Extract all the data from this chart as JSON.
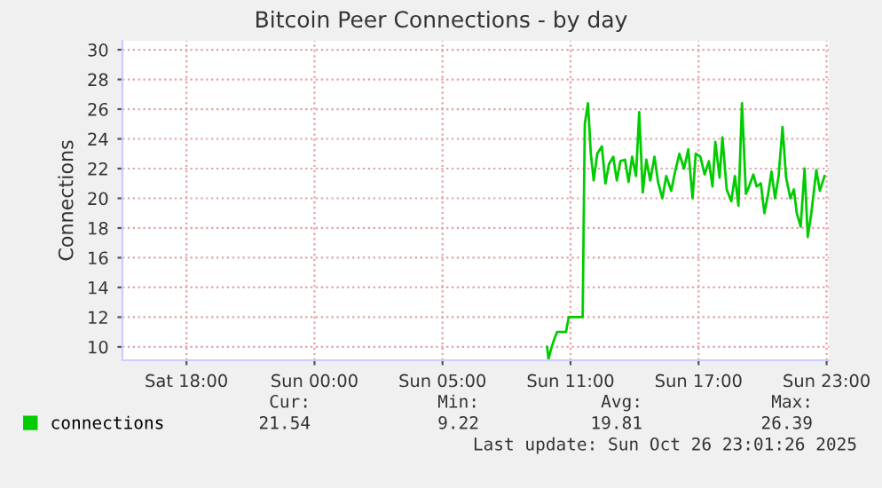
{
  "chart_data": {
    "type": "line",
    "title": "Bitcoin Peer Connections - by day",
    "ylabel": "Connections",
    "x": [
      "2025-10-26T08:54",
      "2025-10-26T08:58",
      "2025-10-26T09:07",
      "2025-10-26T09:14",
      "2025-10-26T09:22",
      "2025-10-26T09:47",
      "2025-10-26T09:55",
      "2025-10-26T10:34",
      "2025-10-26T10:40",
      "2025-10-26T10:49",
      "2025-10-26T10:57",
      "2025-10-26T11:05",
      "2025-10-26T11:15",
      "2025-10-26T11:28",
      "2025-10-26T11:38",
      "2025-10-26T11:48",
      "2025-10-26T12:00",
      "2025-10-26T12:10",
      "2025-10-26T12:20",
      "2025-10-26T12:33",
      "2025-10-26T12:43",
      "2025-10-26T12:53",
      "2025-10-26T13:04",
      "2025-10-26T13:13",
      "2025-10-26T13:23",
      "2025-10-26T13:33",
      "2025-10-26T13:44",
      "2025-10-26T13:56",
      "2025-10-26T14:06",
      "2025-10-26T14:18",
      "2025-10-26T14:29",
      "2025-10-26T14:43",
      "2025-10-26T14:54",
      "2025-10-26T15:06",
      "2025-10-26T15:19",
      "2025-10-26T15:31",
      "2025-10-26T15:43",
      "2025-10-26T15:52",
      "2025-10-26T16:05",
      "2025-10-26T16:17",
      "2025-10-26T16:29",
      "2025-10-26T16:39",
      "2025-10-26T16:47",
      "2025-10-26T16:59",
      "2025-10-26T17:07",
      "2025-10-26T17:19",
      "2025-10-26T17:32",
      "2025-10-26T17:42",
      "2025-10-26T17:52",
      "2025-10-26T18:02",
      "2025-10-26T18:13",
      "2025-10-26T18:22",
      "2025-10-26T18:34",
      "2025-10-26T18:43",
      "2025-10-26T18:55",
      "2025-10-26T19:05",
      "2025-10-26T19:15",
      "2025-10-26T19:25",
      "2025-10-26T19:35",
      "2025-10-26T19:45",
      "2025-10-26T19:56",
      "2025-10-26T20:06",
      "2025-10-26T20:18",
      "2025-10-26T20:28",
      "2025-10-26T20:36",
      "2025-10-26T20:47",
      "2025-10-26T20:58",
      "2025-10-26T21:07",
      "2025-10-26T21:17",
      "2025-10-26T21:31",
      "2025-10-26T21:41",
      "2025-10-26T21:54"
    ],
    "series": [
      {
        "name": "connections",
        "color": "#00cc00",
        "values": [
          10,
          9.2,
          10,
          10.5,
          11,
          11,
          12,
          12,
          25,
          26.4,
          23,
          21.2,
          23,
          23.5,
          21,
          22.3,
          22.8,
          21.2,
          22.5,
          22.6,
          21.1,
          22.8,
          21.5,
          25.8,
          20.4,
          22.6,
          21.2,
          22.8,
          21.1,
          20.0,
          21.5,
          20.5,
          21.8,
          23.0,
          22.0,
          23.3,
          20.0,
          23.0,
          22.8,
          21.6,
          22.5,
          20.8,
          23.8,
          21.4,
          24.1,
          20.6,
          19.8,
          21.5,
          19.5,
          26.4,
          20.3,
          20.8,
          21.6,
          20.8,
          21.0,
          19.0,
          20.2,
          21.8,
          20.0,
          21.5,
          24.8,
          21.4,
          20.0,
          20.6,
          19.0,
          18.1,
          22.0,
          17.4,
          19.0,
          21.9,
          20.5,
          21.5
        ]
      }
    ],
    "xlim": [
      "2025-10-25T13:00",
      "2025-10-26T22:06"
    ],
    "xticks": [
      {
        "value": "2025-10-25T16:00",
        "label": "Sat 18:00"
      },
      {
        "value": "2025-10-25T22:00",
        "label": "Sun 00:00"
      },
      {
        "value": "2025-10-26T04:00",
        "label": "Sun 05:00"
      },
      {
        "value": "2025-10-26T10:00",
        "label": "Sun 11:00"
      },
      {
        "value": "2025-10-26T16:00",
        "label": "Sun 17:00"
      },
      {
        "value": "2025-10-26T22:00",
        "label": "Sun 23:00"
      }
    ],
    "ylim": [
      9.1,
      30.6
    ],
    "yticks": [
      10,
      12,
      14,
      16,
      18,
      20,
      22,
      24,
      26,
      28,
      30
    ],
    "grid": true,
    "legend": "bottom left",
    "annotations": [
      "Cur:",
      "Min:",
      "Avg:",
      "Max:",
      "21.54",
      "9.22",
      "19.81",
      "26.39",
      "Last update: Sun Oct 26 23:01:26 2025"
    ]
  }
}
